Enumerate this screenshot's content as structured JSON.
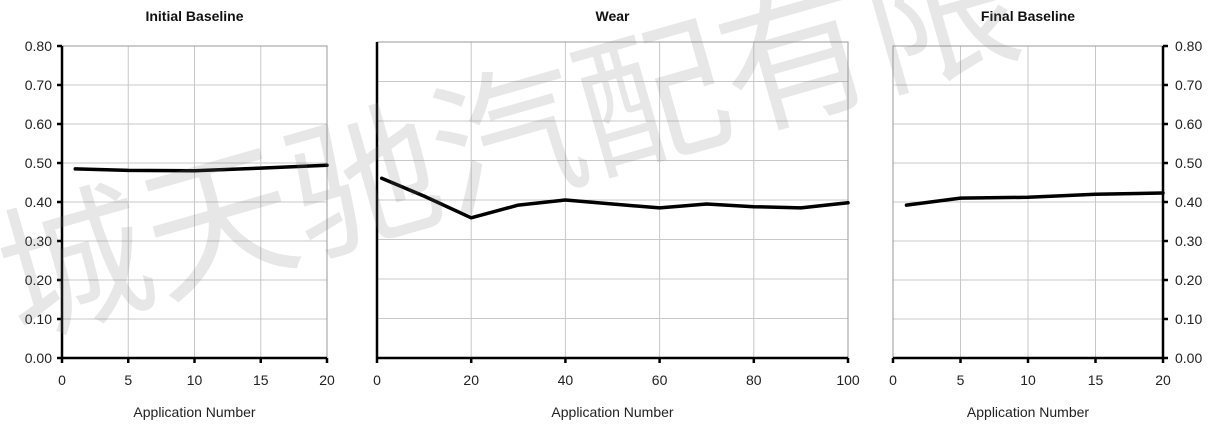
{
  "chart_data": [
    {
      "type": "line",
      "title": "Initial Baseline",
      "xlabel": "Application Number",
      "ylabel": "",
      "xlim": [
        0,
        20
      ],
      "ylim": [
        0,
        0.8
      ],
      "x_ticks": [
        "0",
        "5",
        "10",
        "15",
        "20"
      ],
      "y_ticks": [
        "0.00",
        "0.10",
        "0.20",
        "0.30",
        "0.40",
        "0.50",
        "0.60",
        "0.70",
        "0.80"
      ],
      "y_axis_side": "left",
      "grid": true,
      "x": [
        1,
        5,
        10,
        15,
        20
      ],
      "values": [
        0.485,
        0.481,
        0.48,
        0.487,
        0.494
      ]
    },
    {
      "type": "line",
      "title": "Wear",
      "xlabel": "Application Number",
      "ylabel": "",
      "xlim": [
        0,
        100
      ],
      "ylim": [
        0,
        0.8
      ],
      "x_ticks": [
        "0",
        "20",
        "40",
        "60",
        "80",
        "100"
      ],
      "y_ticks": [],
      "y_axis_side": "none",
      "grid": true,
      "x": [
        1,
        10,
        20,
        30,
        40,
        50,
        60,
        70,
        80,
        90,
        100
      ],
      "values": [
        0.455,
        0.41,
        0.355,
        0.387,
        0.4,
        0.39,
        0.38,
        0.39,
        0.383,
        0.38,
        0.393
      ]
    },
    {
      "type": "line",
      "title": "Final Baseline",
      "xlabel": "Application Number",
      "ylabel": "",
      "xlim": [
        0,
        20
      ],
      "ylim": [
        0,
        0.8
      ],
      "x_ticks": [
        "0",
        "5",
        "10",
        "15",
        "20"
      ],
      "y_ticks": [
        "0.00",
        "0.10",
        "0.20",
        "0.30",
        "0.40",
        "0.50",
        "0.60",
        "0.70",
        "0.80"
      ],
      "y_axis_side": "right",
      "grid": true,
      "x": [
        1,
        5,
        10,
        15,
        20
      ],
      "values": [
        0.392,
        0.41,
        0.412,
        0.42,
        0.423
      ]
    }
  ],
  "watermark": {
    "text": "城天驰汽配有限",
    "color": "#787878"
  }
}
